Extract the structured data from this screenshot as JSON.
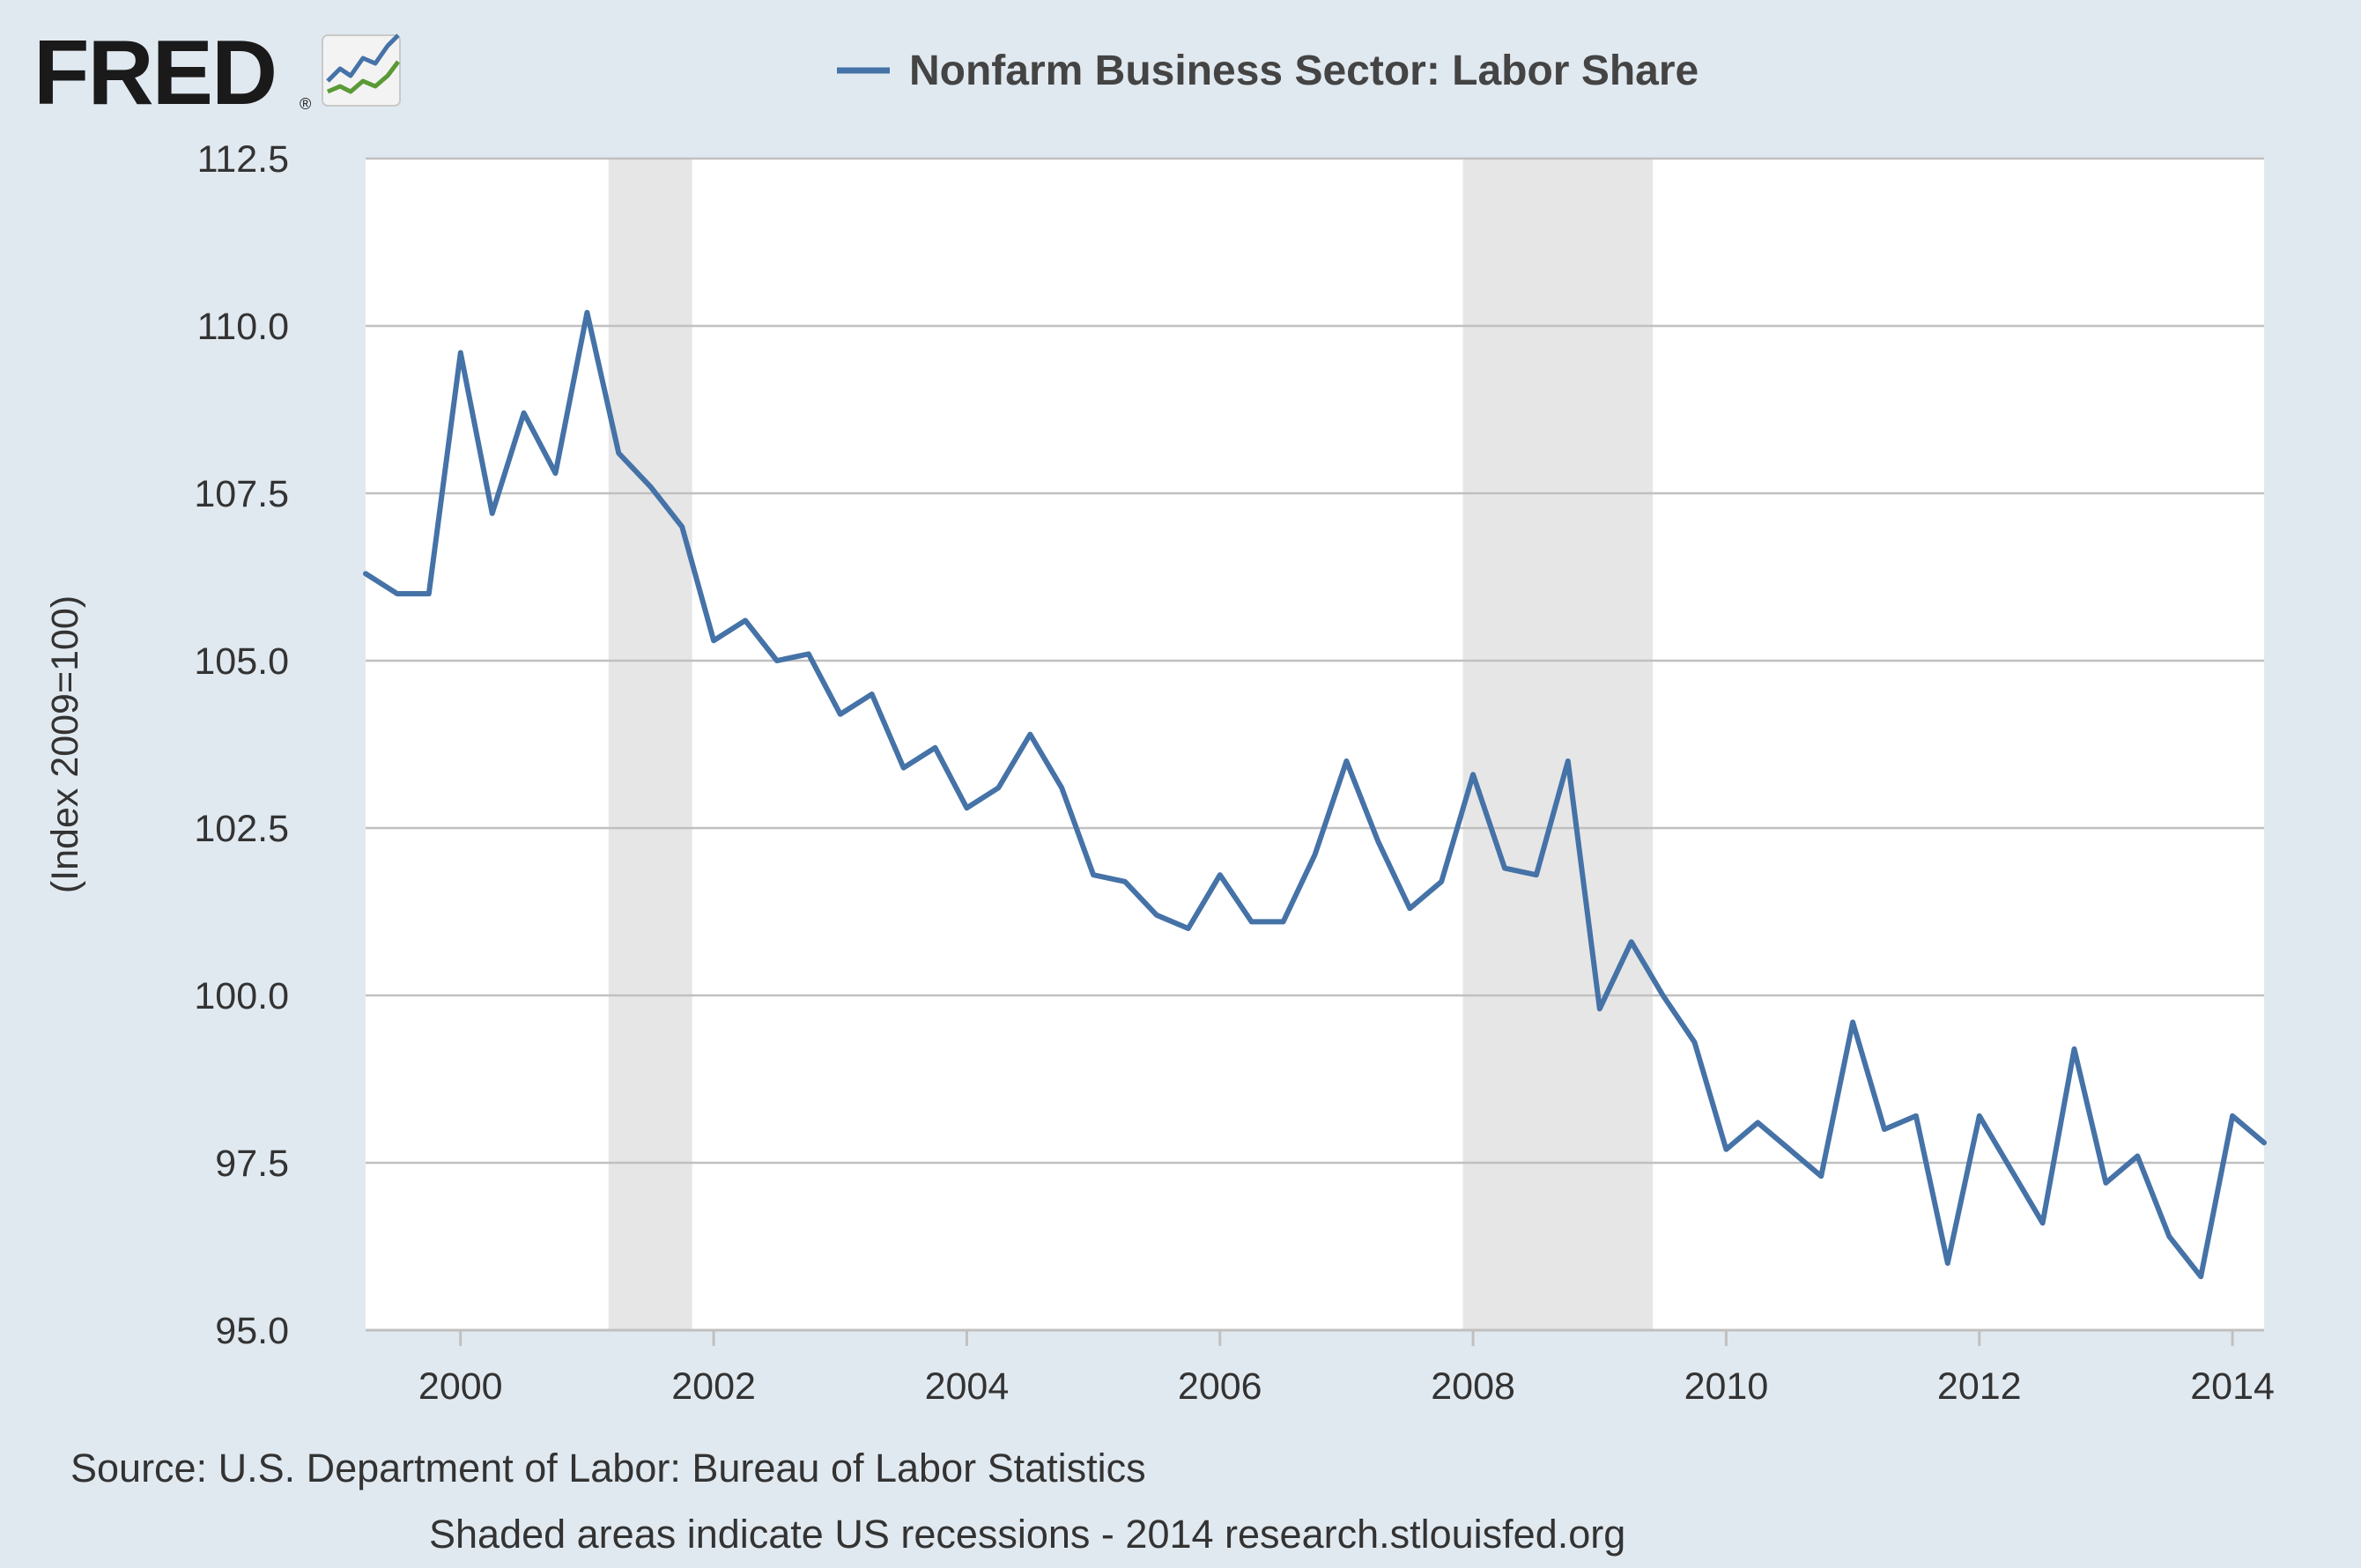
{
  "logo": {
    "text": "FRED",
    "registered": "®"
  },
  "source_line": "Source: U.S. Department of Labor: Bureau of Labor Statistics",
  "recession_note": "Shaded areas indicate US recessions - 2014 research.stlouisfed.org",
  "colors": {
    "background": "#e1e9f0",
    "plot_background": "#ffffff",
    "line": "#4572a7",
    "recession": "#e6e6e6",
    "grid": "#c0c0c0"
  },
  "chart_data": {
    "type": "line",
    "title": "",
    "xlabel": "",
    "ylabel": "(Index 2009=100)",
    "xlim": [
      1999.25,
      2014.25
    ],
    "ylim": [
      95.0,
      112.5
    ],
    "grid": true,
    "legend_position": "top",
    "y_ticks": [
      "95.0",
      "97.5",
      "100.0",
      "102.5",
      "105.0",
      "107.5",
      "110.0",
      "112.5"
    ],
    "x_ticks": [
      "2000",
      "2002",
      "2004",
      "2006",
      "2008",
      "2010",
      "2012",
      "2014"
    ],
    "recessions": [
      [
        2001.17,
        2001.83
      ],
      [
        2007.92,
        2009.42
      ]
    ],
    "series": [
      {
        "name": "Nonfarm Business Sector: Labor Share",
        "x": [
          1999.25,
          1999.5,
          1999.75,
          2000.0,
          2000.25,
          2000.5,
          2000.75,
          2001.0,
          2001.25,
          2001.5,
          2001.75,
          2002.0,
          2002.25,
          2002.5,
          2002.75,
          2003.0,
          2003.25,
          2003.5,
          2003.75,
          2004.0,
          2004.25,
          2004.5,
          2004.75,
          2005.0,
          2005.25,
          2005.5,
          2005.75,
          2006.0,
          2006.25,
          2006.5,
          2006.75,
          2007.0,
          2007.25,
          2007.5,
          2007.75,
          2008.0,
          2008.25,
          2008.5,
          2008.75,
          2009.0,
          2009.25,
          2009.5,
          2009.75,
          2010.0,
          2010.25,
          2010.5,
          2010.75,
          2011.0,
          2011.25,
          2011.5,
          2011.75,
          2012.0,
          2012.25,
          2012.5,
          2012.75,
          2013.0,
          2013.25,
          2013.5,
          2013.75,
          2014.0,
          2014.25
        ],
        "values": [
          106.3,
          106.0,
          106.0,
          109.6,
          107.2,
          108.7,
          107.8,
          110.2,
          108.1,
          107.6,
          107.0,
          105.3,
          105.6,
          105.0,
          105.1,
          104.2,
          104.5,
          103.4,
          103.7,
          102.8,
          103.1,
          103.9,
          103.1,
          101.8,
          101.7,
          101.2,
          101.0,
          101.8,
          101.1,
          101.1,
          102.1,
          103.5,
          102.3,
          101.3,
          101.7,
          103.3,
          101.9,
          101.8,
          103.5,
          99.8,
          100.8,
          100.0,
          99.3,
          97.7,
          98.1,
          97.7,
          97.3,
          99.6,
          98.0,
          98.2,
          96.0,
          98.2,
          97.4,
          96.6,
          99.2,
          97.2,
          97.6,
          96.4,
          95.8,
          98.2,
          97.8
        ]
      }
    ]
  }
}
